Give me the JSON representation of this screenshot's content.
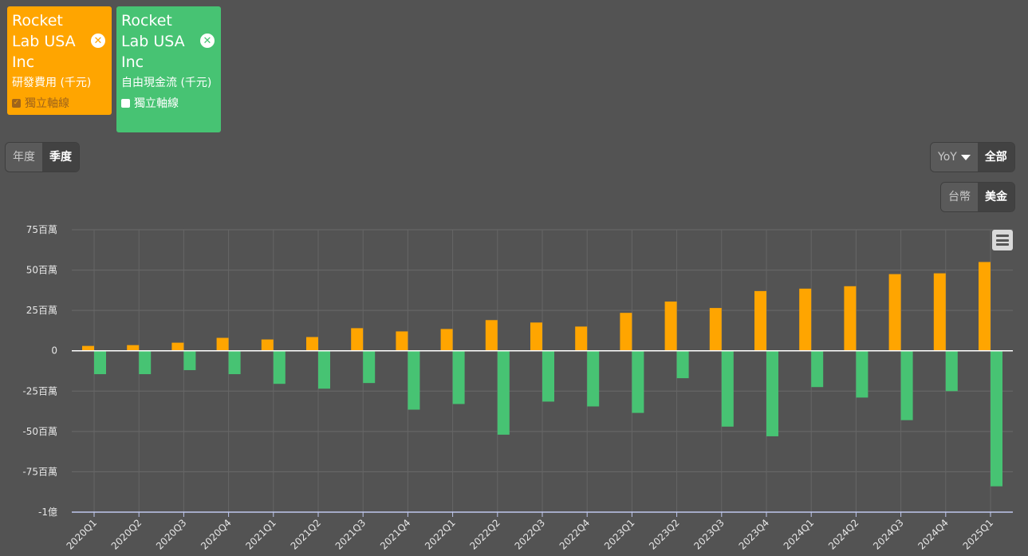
{
  "legend": [
    {
      "company": "Rocket Lab USA Inc",
      "metric": "研發費用 (千元)",
      "axis_label": "獨立軸線",
      "axis_checked": true,
      "color": "#ffa500"
    },
    {
      "company": "Rocket Lab USA Inc",
      "metric": "自由現金流 (千元)",
      "axis_label": "獨立軸線",
      "axis_checked": false,
      "color": "#47c373"
    }
  ],
  "controls": {
    "period": [
      "年度",
      "季度"
    ],
    "period_selected": "季度",
    "yoy": "YoY",
    "all": "全部",
    "currency": [
      "台幣",
      "美金"
    ],
    "currency_selected": "美金"
  },
  "chart_data": {
    "type": "bar",
    "categories": [
      "2020Q1",
      "2020Q2",
      "2020Q3",
      "2020Q4",
      "2021Q1",
      "2021Q2",
      "2021Q3",
      "2021Q4",
      "2022Q1",
      "2022Q2",
      "2022Q3",
      "2022Q4",
      "2023Q1",
      "2023Q2",
      "2023Q3",
      "2023Q4",
      "2024Q1",
      "2024Q2",
      "2024Q3",
      "2024Q4",
      "2025Q1"
    ],
    "series": [
      {
        "name": "研發費用 (千元)",
        "color": "#ffa500",
        "values": [
          3,
          3.5,
          5,
          8,
          7,
          8.5,
          14,
          12,
          13.5,
          19,
          17.5,
          15,
          23.5,
          30.5,
          26.5,
          37,
          38.5,
          40,
          47.5,
          48,
          55
        ]
      },
      {
        "name": "自由現金流 (千元)",
        "color": "#47c373",
        "values": [
          -14.5,
          -14.5,
          -12,
          -14.5,
          -20.5,
          -23.5,
          -20,
          -36.5,
          -33,
          -52,
          -31.5,
          -34.5,
          -38.5,
          -17,
          -47,
          -53,
          -22.5,
          -29,
          -43,
          -25,
          -84
        ]
      }
    ],
    "yticks": [
      "75百萬",
      "50百萬",
      "25百萬",
      "0",
      "-25百萬",
      "-50百萬",
      "-75百萬",
      "-1億"
    ],
    "ytick_values": [
      75,
      50,
      25,
      0,
      -25,
      -50,
      -75,
      -100
    ],
    "ylim": [
      -100,
      75
    ],
    "grid": true
  }
}
